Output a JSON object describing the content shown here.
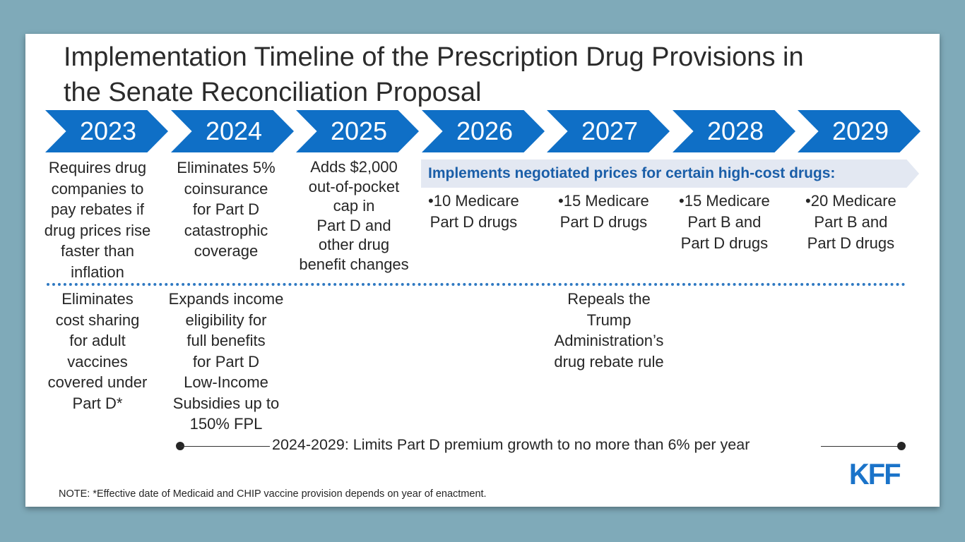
{
  "title": {
    "line1": "Implementation Timeline of the Prescription Drug Provisions in",
    "line2": "the Senate Reconciliation Proposal"
  },
  "years": [
    "2023",
    "2024",
    "2025",
    "2026",
    "2027",
    "2028",
    "2029"
  ],
  "upper": {
    "y2023": [
      "Requires drug",
      "companies to",
      "pay rebates if",
      "drug prices rise",
      "faster than",
      "inflation"
    ],
    "y2024": [
      "Eliminates 5%",
      "coinsurance",
      "for Part D",
      "catastrophic",
      "coverage"
    ],
    "y2025": [
      "Adds $2,000",
      "out-of-pocket",
      "cap in",
      "Part D and",
      "other drug",
      "benefit changes"
    ]
  },
  "negotiation": {
    "banner": "Implements negotiated prices for certain high-cost drugs:",
    "items": [
      {
        "line1": "•10 Medicare",
        "line2": "Part D drugs"
      },
      {
        "line1": "•15 Medicare",
        "line2": "Part D drugs"
      },
      {
        "line1": "•15 Medicare",
        "line2": "Part B and",
        "line3": "Part D drugs"
      },
      {
        "line1": "•20 Medicare",
        "line2": "Part B and",
        "line3": "Part D drugs"
      }
    ]
  },
  "lower": {
    "y2023": [
      "Eliminates",
      "cost sharing",
      "for adult",
      "vaccines",
      "covered under",
      "Part D*"
    ],
    "y2024": [
      "Expands income",
      "eligibility for",
      "full benefits",
      "for Part D",
      "Low-Income",
      "Subsidies up to",
      "150% FPL"
    ],
    "y2027": [
      "Repeals the",
      "Trump",
      "Administration’s",
      "drug rebate rule"
    ]
  },
  "range": "2024-2029: Limits Part D premium growth to no more than 6% per year",
  "logo": "KFF",
  "note": "NOTE: *Effective date of Medicaid and CHIP vaccine provision depends on year of enactment.",
  "colors": {
    "background": "#7faab9",
    "chevron": "#0f6fc6",
    "banner_bg": "#e3e8f2",
    "banner_text": "#1a5ea8",
    "dotted": "#2f79c2",
    "logo": "#1a73c9"
  }
}
